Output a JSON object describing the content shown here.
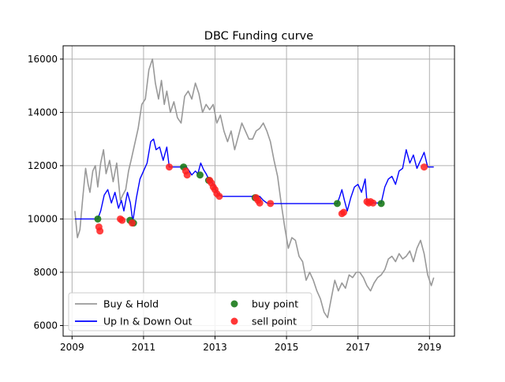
{
  "chart_data": {
    "type": "line",
    "title": "DBC Funding curve",
    "xlabel": "",
    "ylabel": "",
    "xlim": [
      2008.75,
      2019.7
    ],
    "ylim": [
      5600,
      16500
    ],
    "grid": true,
    "legend_placement": "lower-left",
    "x_ticks": [
      2009,
      2011,
      2013,
      2015,
      2017,
      2019
    ],
    "x_tick_labels": [
      "2009",
      "2011",
      "2013",
      "2015",
      "2017",
      "2019"
    ],
    "y_ticks": [
      6000,
      8000,
      10000,
      12000,
      14000,
      16000
    ],
    "y_tick_labels": [
      "6000",
      "8000",
      "10000",
      "12000",
      "14000",
      "16000"
    ],
    "colors": {
      "buy_hold": "#999999",
      "strategy": "#0000ff",
      "buy_point": "#1a7a1a",
      "sell_point": "#ff2020",
      "grid": "#b0b0b0"
    },
    "legend": [
      {
        "label": "Buy & Hold",
        "kind": "line",
        "color": "#999999"
      },
      {
        "label": "Up In & Down Out",
        "kind": "line",
        "color": "#0000ff"
      },
      {
        "label": "buy point",
        "kind": "marker",
        "color": "#1a7a1a"
      },
      {
        "label": "sell point",
        "kind": "marker",
        "color": "#ff2020"
      }
    ],
    "series": [
      {
        "name": "Buy & Hold",
        "x": [
          2009.08,
          2009.15,
          2009.22,
          2009.3,
          2009.38,
          2009.45,
          2009.5,
          2009.58,
          2009.65,
          2009.72,
          2009.8,
          2009.88,
          2009.95,
          2010.05,
          2010.15,
          2010.25,
          2010.35,
          2010.42,
          2010.5,
          2010.58,
          2010.65,
          2010.75,
          2010.85,
          2010.95,
          2011.05,
          2011.15,
          2011.25,
          2011.33,
          2011.42,
          2011.5,
          2011.58,
          2011.65,
          2011.75,
          2011.85,
          2011.95,
          2012.05,
          2012.15,
          2012.25,
          2012.35,
          2012.45,
          2012.55,
          2012.65,
          2012.75,
          2012.85,
          2012.95,
          2013.05,
          2013.15,
          2013.25,
          2013.35,
          2013.45,
          2013.55,
          2013.65,
          2013.75,
          2013.85,
          2013.95,
          2014.05,
          2014.15,
          2014.25,
          2014.35,
          2014.45,
          2014.55,
          2014.65,
          2014.75,
          2014.85,
          2014.95,
          2015.05,
          2015.15,
          2015.25,
          2015.35,
          2015.45,
          2015.55,
          2015.65,
          2015.75,
          2015.85,
          2015.95,
          2016.05,
          2016.15,
          2016.25,
          2016.35,
          2016.45,
          2016.55,
          2016.65,
          2016.75,
          2016.85,
          2016.95,
          2017.05,
          2017.15,
          2017.25,
          2017.35,
          2017.45,
          2017.55,
          2017.65,
          2017.75,
          2017.85,
          2017.95,
          2018.05,
          2018.15,
          2018.25,
          2018.35,
          2018.45,
          2018.55,
          2018.65,
          2018.75,
          2018.85,
          2018.95,
          2019.05,
          2019.12
        ],
        "values": [
          10300,
          9300,
          9600,
          10800,
          11900,
          11300,
          11000,
          11800,
          12000,
          11200,
          12100,
          12600,
          11700,
          12200,
          11400,
          12100,
          10700,
          10900,
          11100,
          11800,
          12200,
          12800,
          13400,
          14300,
          14500,
          15600,
          16000,
          15100,
          14500,
          15200,
          14300,
          14800,
          14000,
          14400,
          13800,
          13600,
          14600,
          14800,
          14500,
          15100,
          14700,
          14000,
          14300,
          14100,
          14300,
          13600,
          13900,
          13300,
          12900,
          13300,
          12600,
          13100,
          13600,
          13300,
          13000,
          13000,
          13300,
          13400,
          13600,
          13300,
          12900,
          12200,
          11600,
          10600,
          9700,
          8900,
          9300,
          9200,
          8600,
          8400,
          7700,
          8000,
          7700,
          7300,
          7000,
          6500,
          6300,
          7000,
          7700,
          7300,
          7600,
          7400,
          7900,
          7800,
          8000,
          8000,
          7800,
          7500,
          7300,
          7600,
          7800,
          7900,
          8100,
          8500,
          8600,
          8400,
          8700,
          8500,
          8600,
          8800,
          8400,
          8900,
          9200,
          8700,
          7900,
          7500,
          7800
        ]
      },
      {
        "name": "Up In & Down Out",
        "x": [
          2009.08,
          2009.72,
          2009.8,
          2009.9,
          2010.0,
          2010.1,
          2010.2,
          2010.3,
          2010.38,
          2010.45,
          2010.55,
          2010.63,
          2010.7,
          2010.8,
          2010.9,
          2011.0,
          2011.1,
          2011.2,
          2011.28,
          2011.35,
          2011.45,
          2011.55,
          2011.65,
          2011.72,
          2011.85,
          2012.0,
          2012.15,
          2012.2,
          2012.28,
          2012.35,
          2012.45,
          2012.52,
          2012.6,
          2012.68,
          2012.75,
          2012.82,
          2012.9,
          2013.0,
          2013.05,
          2013.12,
          2013.2,
          2014.15,
          2014.25,
          2014.35,
          2014.45,
          2014.55,
          2016.42,
          2016.48,
          2016.55,
          2016.62,
          2016.7,
          2016.8,
          2016.9,
          2017.0,
          2017.1,
          2017.2,
          2017.25,
          2017.35,
          2017.45,
          2017.65,
          2017.75,
          2017.85,
          2017.95,
          2018.05,
          2018.15,
          2018.25,
          2018.35,
          2018.45,
          2018.55,
          2018.65,
          2018.75,
          2018.85,
          2018.95,
          2019.05,
          2019.12
        ],
        "values": [
          10000,
          10000,
          10300,
          10900,
          11100,
          10600,
          11000,
          10400,
          10700,
          10300,
          11000,
          10600,
          9900,
          10800,
          11500,
          11800,
          12100,
          12900,
          13000,
          12600,
          12700,
          12200,
          12700,
          11950,
          11950,
          11950,
          11950,
          11950,
          11800,
          11650,
          11800,
          11700,
          12100,
          11850,
          11700,
          11500,
          11400,
          11200,
          11000,
          10900,
          10850,
          10850,
          10850,
          10700,
          10600,
          10580,
          10580,
          10800,
          11100,
          10700,
          10300,
          10800,
          11200,
          11300,
          11000,
          11500,
          10650,
          10650,
          10600,
          10600,
          11200,
          11500,
          11600,
          11300,
          11800,
          11900,
          12600,
          12100,
          12400,
          11900,
          12200,
          12500,
          11950,
          11950,
          11950
        ]
      }
    ],
    "buy_points": {
      "x": [
        2009.72,
        2010.62,
        2010.72,
        2012.12,
        2012.58,
        2012.82,
        2014.12,
        2016.42,
        2017.65
      ],
      "values": [
        10000,
        9950,
        9850,
        11950,
        11650,
        11450,
        10800,
        10580,
        10580
      ]
    },
    "sell_points": {
      "x": [
        2009.75,
        2009.78,
        2010.35,
        2010.4,
        2010.68,
        2011.72,
        2012.18,
        2012.22,
        2012.85,
        2012.9,
        2012.95,
        2013.0,
        2013.05,
        2013.12,
        2014.15,
        2014.2,
        2014.25,
        2014.55,
        2016.55,
        2016.6,
        2017.25,
        2017.3,
        2017.35,
        2017.42,
        2018.85
      ],
      "values": [
        9700,
        9550,
        10000,
        9950,
        9850,
        11950,
        11800,
        11650,
        11450,
        11350,
        11200,
        11100,
        10950,
        10850,
        10800,
        10700,
        10600,
        10580,
        10200,
        10250,
        10650,
        10600,
        10650,
        10600,
        11950
      ]
    }
  }
}
